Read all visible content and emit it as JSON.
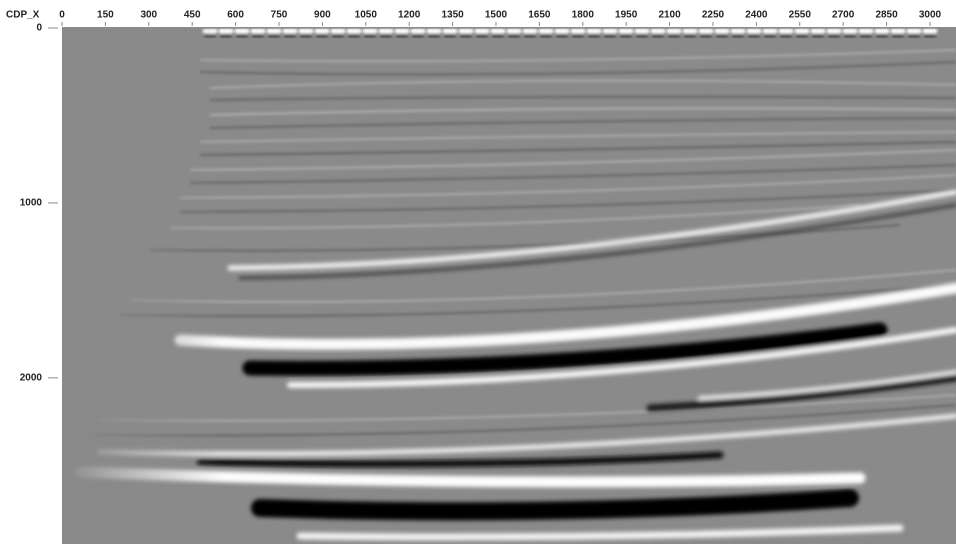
{
  "chart_data": {
    "type": "seismic",
    "x_label": "CDP_X",
    "xlim": [
      0,
      3090
    ],
    "xticks": [
      0,
      150,
      300,
      450,
      600,
      750,
      900,
      1050,
      1200,
      1350,
      1500,
      1650,
      1800,
      1950,
      2100,
      2250,
      2400,
      2550,
      2700,
      2850,
      3000
    ],
    "ylim": [
      0,
      2950
    ],
    "yticks": [
      0,
      1000,
      2000
    ],
    "y_reversed": true
  }
}
